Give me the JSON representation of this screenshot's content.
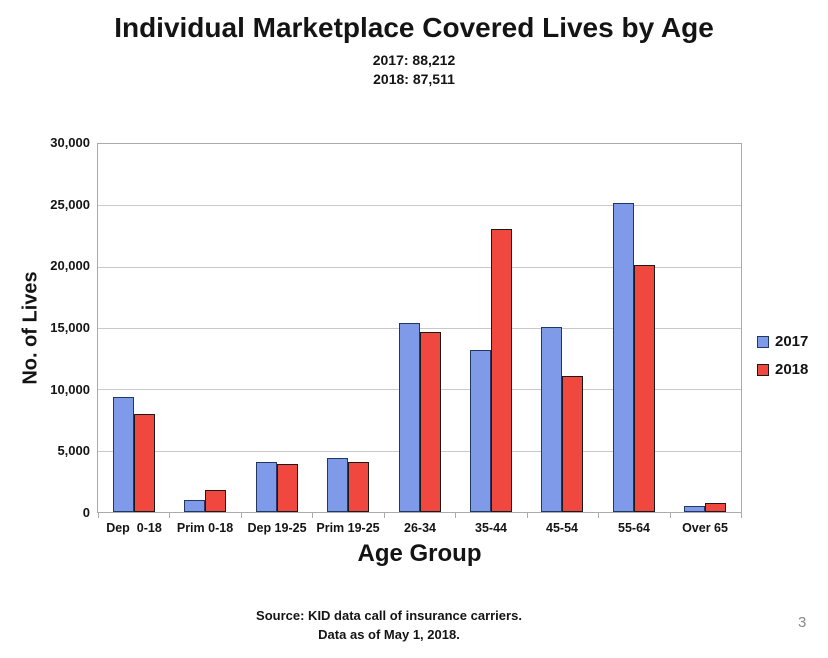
{
  "slide": {
    "title": "Individual Marketplace Covered Lives by Age",
    "subtitle_lines": [
      "2017: 88,212",
      "2018: 87,511"
    ],
    "footer_lines": [
      "Source: KID data call of insurance carriers.",
      "Data as of May 1, 2018."
    ],
    "page_number": "3"
  },
  "chart_data": {
    "type": "bar",
    "title": "Individual Marketplace Covered Lives by Age",
    "subtitle_totals": {
      "2017": 88212,
      "2018": 87511
    },
    "xlabel": "Age Group",
    "ylabel": "No. of Lives",
    "categories": [
      "Dep  0-18",
      "Prim 0-18",
      "Dep 19-25",
      "Prim 19-25",
      "26-34",
      "35-44",
      "45-54",
      "55-64",
      "Over 65"
    ],
    "series": [
      {
        "name": "2017",
        "color": "#7e9ae8",
        "border_color": "#1f3864",
        "values": [
          9400,
          1000,
          4050,
          4400,
          15400,
          13200,
          15100,
          25200,
          500
        ]
      },
      {
        "name": "2018",
        "color": "#f0483f",
        "border_color": "#1a1a1a",
        "values": [
          8000,
          1800,
          3900,
          4100,
          14700,
          23100,
          11050,
          20100,
          750
        ]
      }
    ],
    "ylim": [
      0,
      30000
    ],
    "ytick_step": 5000,
    "ytick_labels": [
      "0",
      "5,000",
      "10,000",
      "15,000",
      "20,000",
      "25,000",
      "30,000"
    ],
    "grid": true,
    "legend_position": "right",
    "source_note": "Source: KID data call of insurance carriers.",
    "data_date_note": "Data as of May 1, 2018."
  }
}
